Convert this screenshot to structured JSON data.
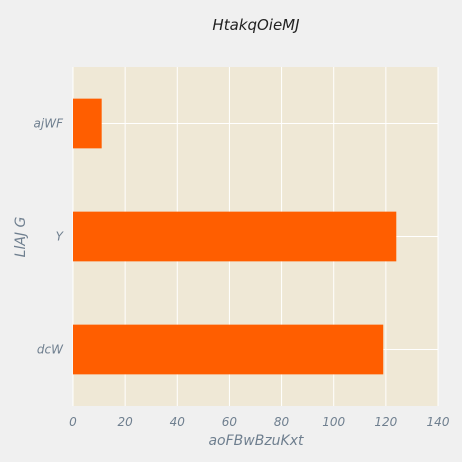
{
  "chart_data": {
    "type": "bar",
    "orientation": "horizontal",
    "title": "HtakqOieMJ",
    "xlabel": "aoFBwBzuKxt",
    "ylabel": "LlAJ G",
    "categories": [
      "ajWF",
      "Y",
      "dcW"
    ],
    "series": [
      {
        "values": [
          11,
          124,
          119
        ]
      }
    ],
    "xlim": [
      0,
      140
    ],
    "xticks": [
      0,
      20,
      40,
      60,
      80,
      100,
      120,
      140
    ],
    "grid": true,
    "colors": {
      "bar": "#ff5e00",
      "plot_background": "#efe8d6",
      "figure_background": "#f0f0f0",
      "grid": "#ffffff"
    }
  }
}
